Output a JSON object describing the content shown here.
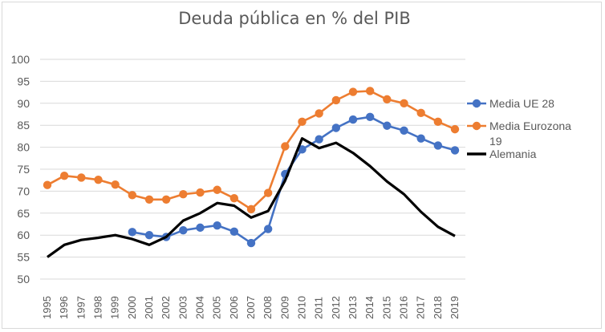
{
  "chart_data": {
    "type": "line",
    "title": "Deuda pública en % del PIB",
    "xlabel": "",
    "ylabel": "",
    "x": [
      "1995",
      "1996",
      "1997",
      "1998",
      "1999",
      "2000",
      "2001",
      "2002",
      "2003",
      "2004",
      "2005",
      "2006",
      "2007",
      "2008",
      "2009",
      "2010",
      "2011",
      "2012",
      "2013",
      "2014",
      "2015",
      "2016",
      "2017",
      "2018",
      "2019"
    ],
    "ylim": [
      50,
      100
    ],
    "yticks": [
      50,
      55,
      60,
      65,
      70,
      75,
      80,
      85,
      90,
      95,
      100
    ],
    "grid": true,
    "legend_position": "right",
    "series": [
      {
        "name": "Media UE 28",
        "color": "#4472c4",
        "marker": "circle",
        "values": [
          null,
          null,
          null,
          null,
          null,
          60.7,
          60.0,
          59.6,
          61.1,
          61.7,
          62.2,
          60.8,
          58.2,
          61.4,
          73.9,
          79.5,
          81.8,
          84.4,
          86.3,
          86.9,
          84.9,
          83.8,
          82.0,
          80.4,
          79.3
        ]
      },
      {
        "name": "Media Eurozona 19",
        "color": "#ed7d31",
        "marker": "circle",
        "values": [
          71.4,
          73.5,
          73.1,
          72.6,
          71.5,
          69.1,
          68.1,
          68.1,
          69.3,
          69.7,
          70.3,
          68.4,
          65.9,
          69.6,
          80.2,
          85.8,
          87.7,
          90.7,
          92.6,
          92.8,
          90.9,
          90.0,
          87.8,
          85.8,
          84.1
        ]
      },
      {
        "name": "Alemania",
        "color": "#000000",
        "marker": "none",
        "values": [
          55.0,
          57.8,
          58.9,
          59.4,
          60.0,
          59.1,
          57.8,
          59.6,
          63.3,
          65.0,
          67.3,
          66.7,
          64.0,
          65.5,
          72.4,
          82.0,
          79.8,
          81.0,
          78.7,
          75.7,
          72.2,
          69.3,
          65.3,
          61.9,
          59.8
        ]
      }
    ]
  }
}
